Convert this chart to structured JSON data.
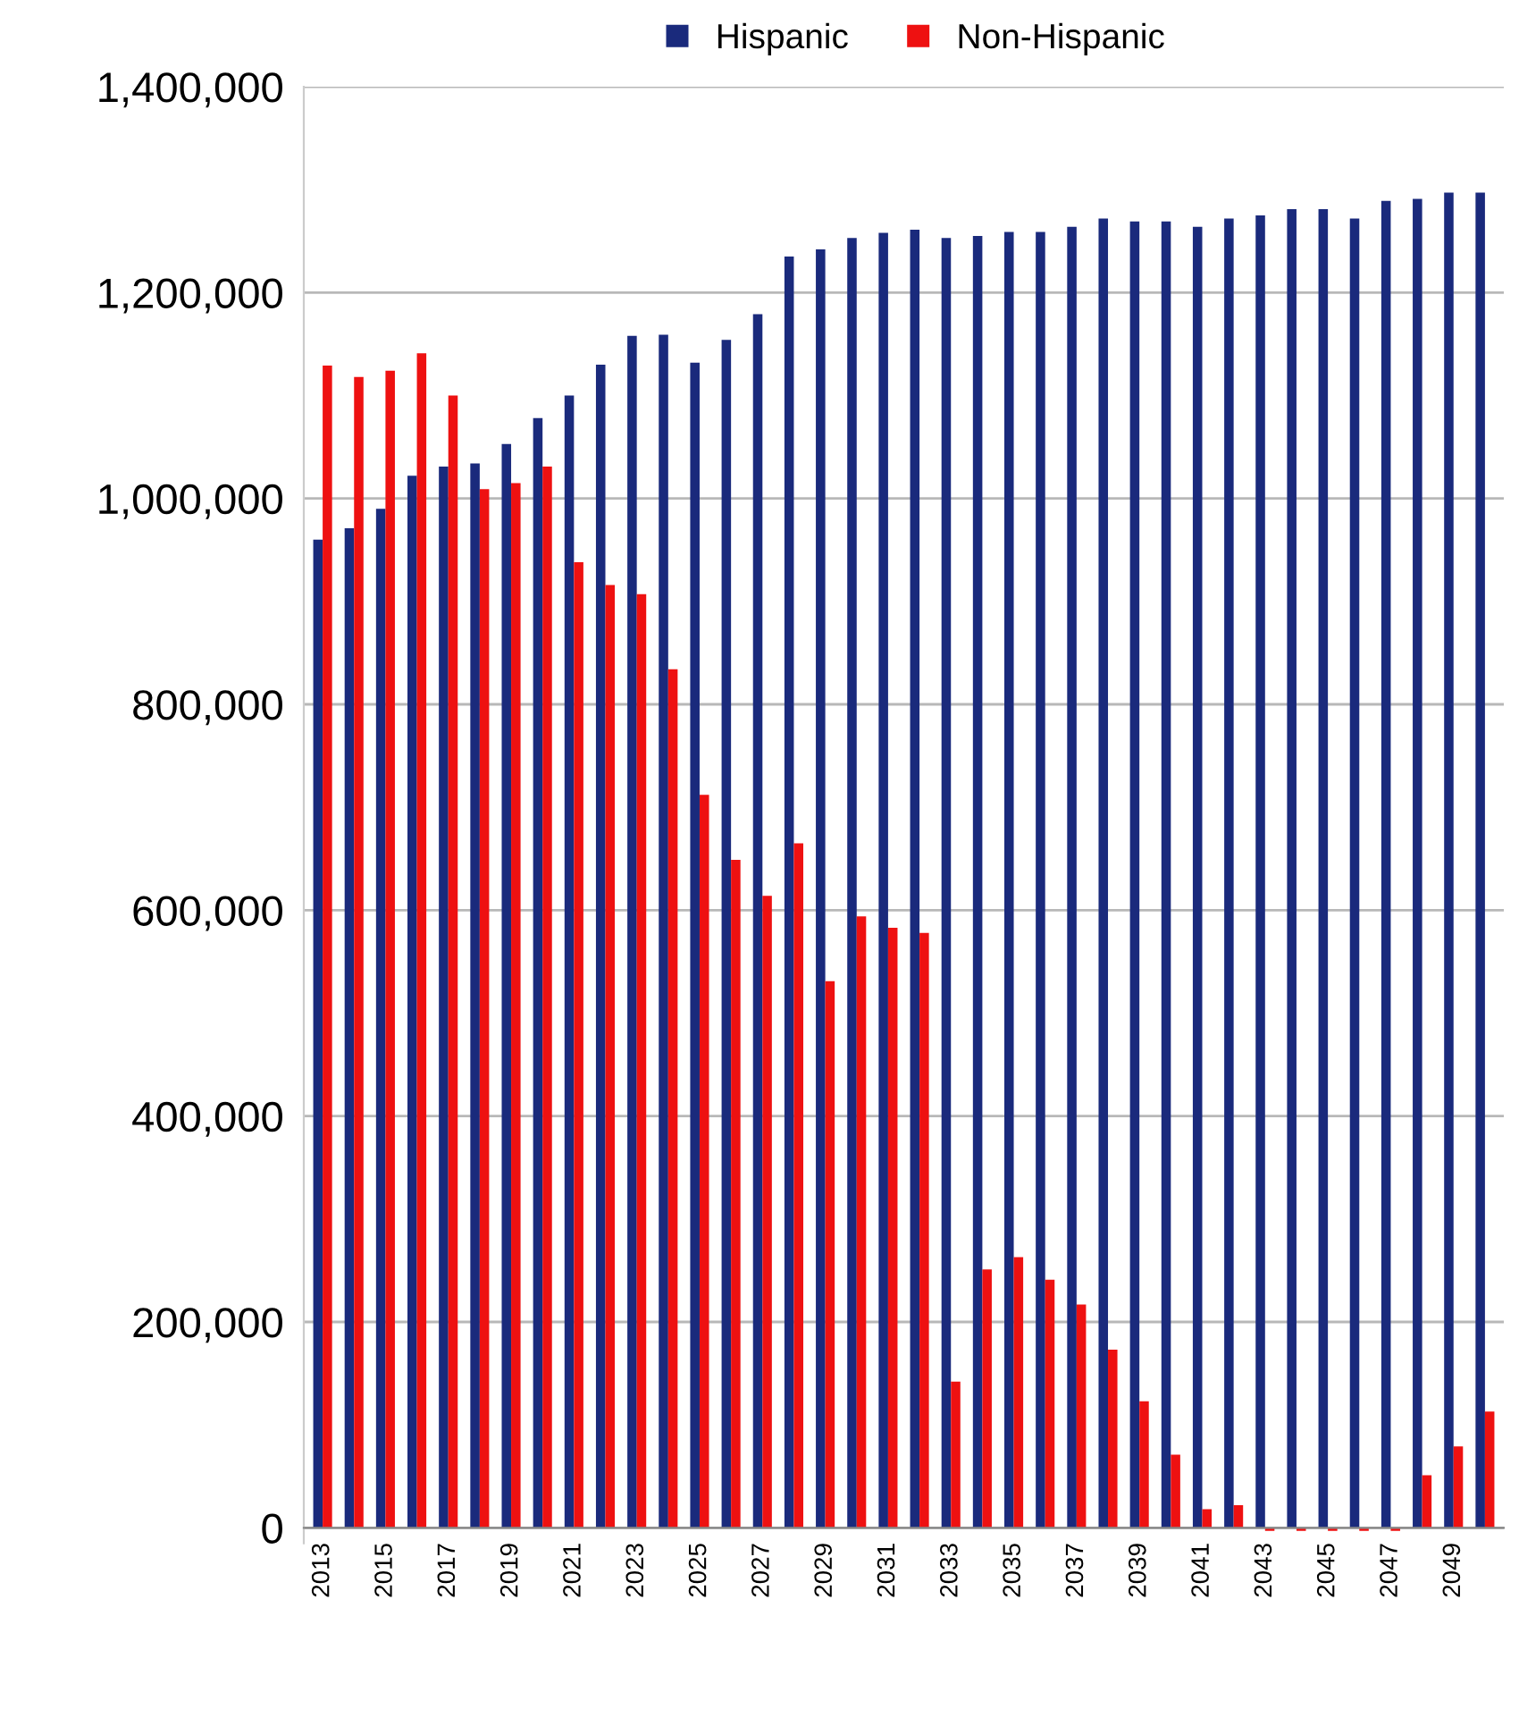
{
  "chart_data": {
    "type": "bar",
    "categories": [
      "2013",
      null,
      "2015",
      null,
      "2017",
      null,
      "2019",
      null,
      "2021",
      null,
      "2023",
      null,
      "2025",
      null,
      "2027",
      null,
      "2029",
      null,
      "2031",
      null,
      "2033",
      null,
      "2035",
      null,
      "2037",
      null,
      "2039",
      null,
      "2041",
      null,
      "2043",
      null,
      "2045",
      null,
      "2047",
      null,
      "2049",
      null
    ],
    "series": [
      {
        "name": "Hispanic",
        "color": "#1a2a7c",
        "values": [
          960000,
          971000,
          990000,
          1022000,
          1031000,
          1034000,
          1053000,
          1078000,
          1100000,
          1130000,
          1158000,
          1159000,
          1132000,
          1154000,
          1179000,
          1235000,
          1242000,
          1253000,
          1258000,
          1261000,
          1253000,
          1255000,
          1259000,
          1259000,
          1264000,
          1272000,
          1269000,
          1269000,
          1264000,
          1272000,
          1275000,
          1281000,
          1281000,
          1272000,
          1289000,
          1291000,
          1297000,
          1297000
        ]
      },
      {
        "name": "Non-Hispanic",
        "color": "#ee1111",
        "values": [
          1129000,
          1118000,
          1124000,
          1141000,
          1100000,
          1009000,
          1015000,
          1031000,
          938000,
          916000,
          907000,
          834000,
          712000,
          649000,
          614000,
          665000,
          531000,
          594000,
          583000,
          578000,
          142000,
          251000,
          263000,
          241000,
          217000,
          173000,
          123000,
          71000,
          18000,
          22000,
          -3000,
          -3000,
          -3000,
          -3000,
          -3000,
          51000,
          79000,
          113000
        ]
      }
    ],
    "ylim": [
      -15000,
      1400000
    ],
    "yticks": [
      {
        "value": 0,
        "label": "0"
      },
      {
        "value": 200000,
        "label": "200,000"
      },
      {
        "value": 400000,
        "label": "400,000"
      },
      {
        "value": 600000,
        "label": "600,000"
      },
      {
        "value": 800000,
        "label": "800,000"
      },
      {
        "value": 1000000,
        "label": "1,000,000"
      },
      {
        "value": 1200000,
        "label": "1,200,000"
      },
      {
        "value": 1400000,
        "label": "1,400,000"
      }
    ],
    "grid": "y",
    "legend": "top"
  }
}
